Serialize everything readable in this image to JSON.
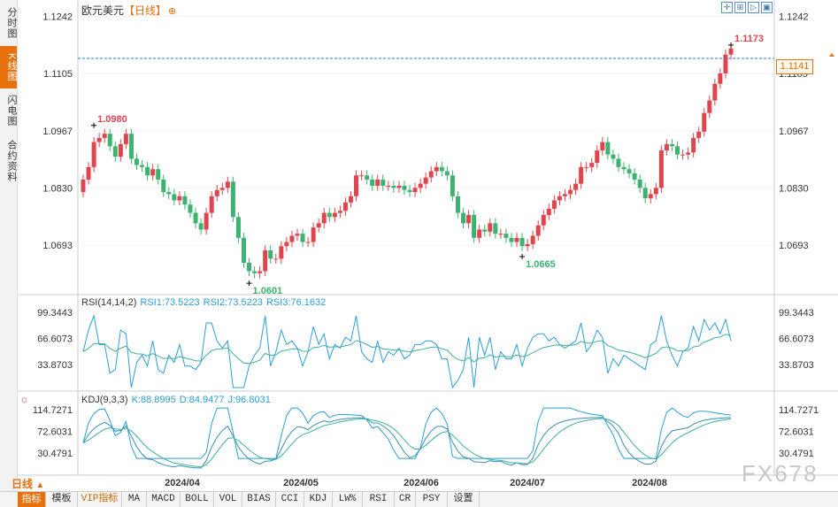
{
  "sidebar": {
    "tabs": [
      {
        "label": "分时图",
        "active": false
      },
      {
        "label": "K线图",
        "active": true
      },
      {
        "label": "闪电图",
        "active": false
      },
      {
        "label": "合约资料",
        "active": false
      }
    ]
  },
  "header": {
    "symbol": "欧元美元",
    "period": "【日线】",
    "settings_glyph": "⊕"
  },
  "toolbar_icons": [
    "crosshair-icon",
    "zoom-in-icon",
    "step-icon",
    "fullscreen-icon"
  ],
  "main_chart": {
    "y_ticks": [
      "1.1242",
      "1.1105",
      "1.0967",
      "1.0830",
      "1.0693"
    ],
    "current_price": "1.1141",
    "annotations": {
      "high_1": "1.0980",
      "low_1": "1.0601",
      "low_2": "1.0665",
      "high_2": "1.1173"
    },
    "colors": {
      "up": "#e0444d",
      "down": "#3cb371",
      "current": "#2a7fd4"
    }
  },
  "rsi_panel": {
    "label": "RSI(14,14,2)",
    "rsi1": "RSI1:73.5223",
    "rsi2": "RSI2:73.5223",
    "rsi3": "RSI3:76.1632",
    "y_ticks": [
      "99.3443",
      "66.6073",
      "33.8703"
    ]
  },
  "kdj_panel": {
    "label": "KDJ(9,3,3)",
    "k": "K:88.8995",
    "d": "D:84.9477",
    "j": "J:96.8031",
    "y_ticks": [
      "114.7271",
      "72.6031",
      "30.4791"
    ]
  },
  "x_axis": [
    "2024/04",
    "2024/05",
    "2024/06",
    "2024/07",
    "2024/08"
  ],
  "period_selector": "日线",
  "bottom_tabs": [
    {
      "label": "指标",
      "active": true
    },
    {
      "label": "模板"
    },
    {
      "label": "VIP指标",
      "vip": true
    },
    {
      "label": "MA"
    },
    {
      "label": "MACD"
    },
    {
      "label": "BOLL"
    },
    {
      "label": "VOL"
    },
    {
      "label": "BIAS"
    },
    {
      "label": "CCI"
    },
    {
      "label": "KDJ"
    },
    {
      "label": "LW%"
    },
    {
      "label": "RSI"
    },
    {
      "label": "CR"
    },
    {
      "label": "PSY"
    },
    {
      "label": "设置"
    }
  ],
  "watermark": "FX678",
  "chart_data": {
    "type": "candlestick",
    "instrument": "欧元美元",
    "yrange": [
      1.058,
      1.126
    ],
    "series_close": [
      1.085,
      1.088,
      1.094,
      1.095,
      1.096,
      1.093,
      1.0905,
      1.0935,
      1.096,
      1.09,
      1.0885,
      1.088,
      1.086,
      1.0875,
      1.085,
      1.082,
      1.0815,
      1.08,
      1.081,
      1.079,
      1.077,
      1.0745,
      1.073,
      1.077,
      1.081,
      1.0825,
      1.083,
      1.0845,
      1.076,
      1.071,
      1.065,
      1.063,
      1.0625,
      1.063,
      1.068,
      1.066,
      1.066,
      1.069,
      1.07,
      1.0715,
      1.072,
      1.07,
      1.07,
      1.0735,
      1.0745,
      1.077,
      1.076,
      1.077,
      1.0775,
      1.0795,
      1.081,
      1.086,
      1.086,
      1.085,
      1.0835,
      1.085,
      1.0835,
      1.0835,
      1.083,
      1.0835,
      1.0825,
      1.082,
      1.083,
      1.084,
      1.0855,
      1.087,
      1.088,
      1.087,
      1.086,
      1.081,
      1.077,
      1.0745,
      1.0765,
      1.071,
      1.073,
      1.0725,
      1.0745,
      1.072,
      1.072,
      1.071,
      1.07,
      1.071,
      1.069,
      1.0695,
      1.0715,
      1.074,
      1.0765,
      1.078,
      1.08,
      1.081,
      1.0815,
      1.0825,
      1.084,
      1.088,
      1.088,
      1.089,
      1.092,
      1.094,
      1.091,
      1.09,
      1.088,
      1.0875,
      1.0865,
      1.085,
      1.083,
      1.0805,
      1.0815,
      1.083,
      1.092,
      1.0935,
      1.093,
      1.091,
      1.091,
      1.0915,
      1.095,
      1.0965,
      1.101,
      1.104,
      1.108,
      1.1105,
      1.115,
      1.1165
    ]
  }
}
